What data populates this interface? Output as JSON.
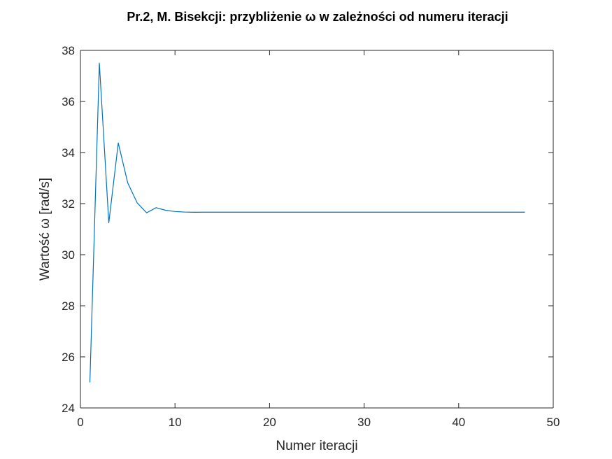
{
  "chart_data": {
    "type": "line",
    "title": "Pr.2, M. Bisekcji: przybliżenie ω w zależności od numeru iteracji",
    "xlabel": "Numer iteracji",
    "ylabel": "Wartość ω [rad/s]",
    "xlim": [
      0,
      50
    ],
    "ylim": [
      24,
      38
    ],
    "xticks": [
      0,
      10,
      20,
      30,
      40,
      50
    ],
    "yticks": [
      24,
      26,
      28,
      30,
      32,
      34,
      36,
      38
    ],
    "grid": false,
    "legend": null,
    "series": [
      {
        "color": "#0072BD",
        "x": [
          1,
          2,
          3,
          4,
          5,
          6,
          7,
          8,
          9,
          10,
          11,
          12,
          13,
          14,
          15,
          16,
          17,
          18,
          19,
          20,
          21,
          22,
          23,
          24,
          25,
          26,
          27,
          28,
          29,
          30,
          31,
          32,
          33,
          34,
          35,
          36,
          37,
          38,
          39,
          40,
          41,
          42,
          43,
          44,
          45,
          46,
          47
        ],
        "y": [
          25.0,
          37.5,
          31.25,
          34.375,
          32.8125,
          32.03,
          31.64,
          31.84,
          31.74,
          31.69,
          31.67,
          31.66,
          31.665,
          31.665,
          31.665,
          31.665,
          31.665,
          31.665,
          31.665,
          31.665,
          31.665,
          31.665,
          31.665,
          31.665,
          31.665,
          31.665,
          31.665,
          31.665,
          31.665,
          31.665,
          31.665,
          31.665,
          31.665,
          31.665,
          31.665,
          31.665,
          31.665,
          31.665,
          31.665,
          31.665,
          31.665,
          31.665,
          31.665,
          31.665,
          31.665,
          31.665,
          31.665
        ]
      }
    ]
  }
}
